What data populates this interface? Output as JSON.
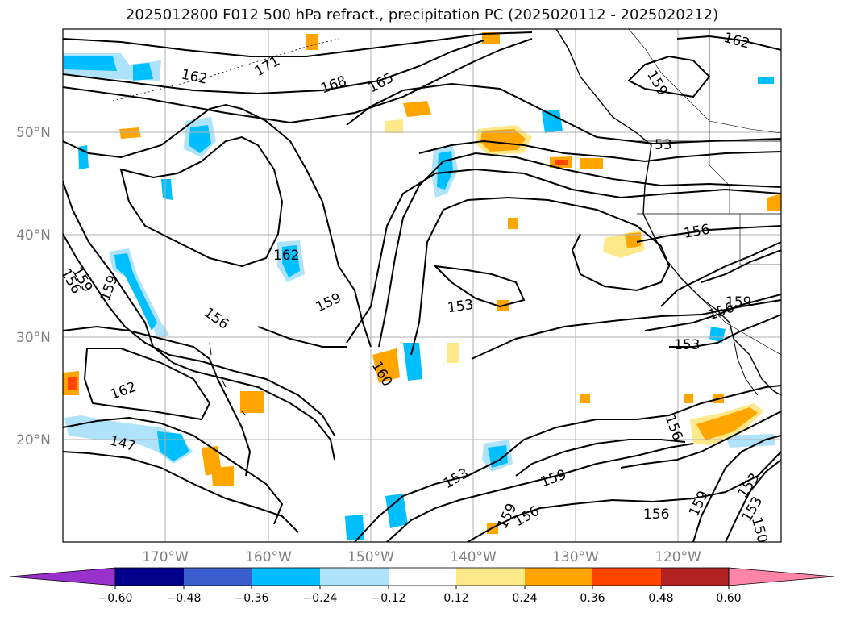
{
  "title": "2025012800 F012 500 hPa refract., precipitation PC (2025020112 - 2025020212)",
  "colors": {
    "contour": "#000000",
    "grid": "#b0b0b0",
    "neg_light": "#aee3fb",
    "neg_mid": "#00bfff",
    "pos_light": "#fde98a",
    "pos_mid": "#ffa500",
    "pos_strong": "#ff4500"
  },
  "map": {
    "lat_labels": [
      "50°N",
      "40°N",
      "30°N",
      "20°N"
    ],
    "lon_labels": [
      "170°W",
      "160°W",
      "150°W",
      "140°W",
      "130°W",
      "120°W"
    ]
  },
  "contour_labels": [
    "162",
    "171",
    "162",
    "168",
    "165",
    "159",
    "53",
    "156",
    "162",
    "159",
    "153",
    "156",
    "159",
    "159",
    "156",
    "159",
    "153",
    "162",
    "160",
    "147",
    "153",
    "159",
    "156",
    "159",
    "156",
    "156",
    "159",
    "153",
    "153",
    "150",
    "156"
  ],
  "colorbar": {
    "colors": [
      "#9932cc",
      "#00008b",
      "#3a5fcd",
      "#00bfff",
      "#aee3fb",
      "#ffffff",
      "#fde98a",
      "#ffa500",
      "#ff4500",
      "#b22222",
      "#ff85a8"
    ],
    "tick_labels": [
      "−0.60",
      "−0.48",
      "−0.36",
      "−0.24",
      "−0.12",
      "0.12",
      "0.24",
      "0.36",
      "0.48",
      "0.60"
    ]
  }
}
